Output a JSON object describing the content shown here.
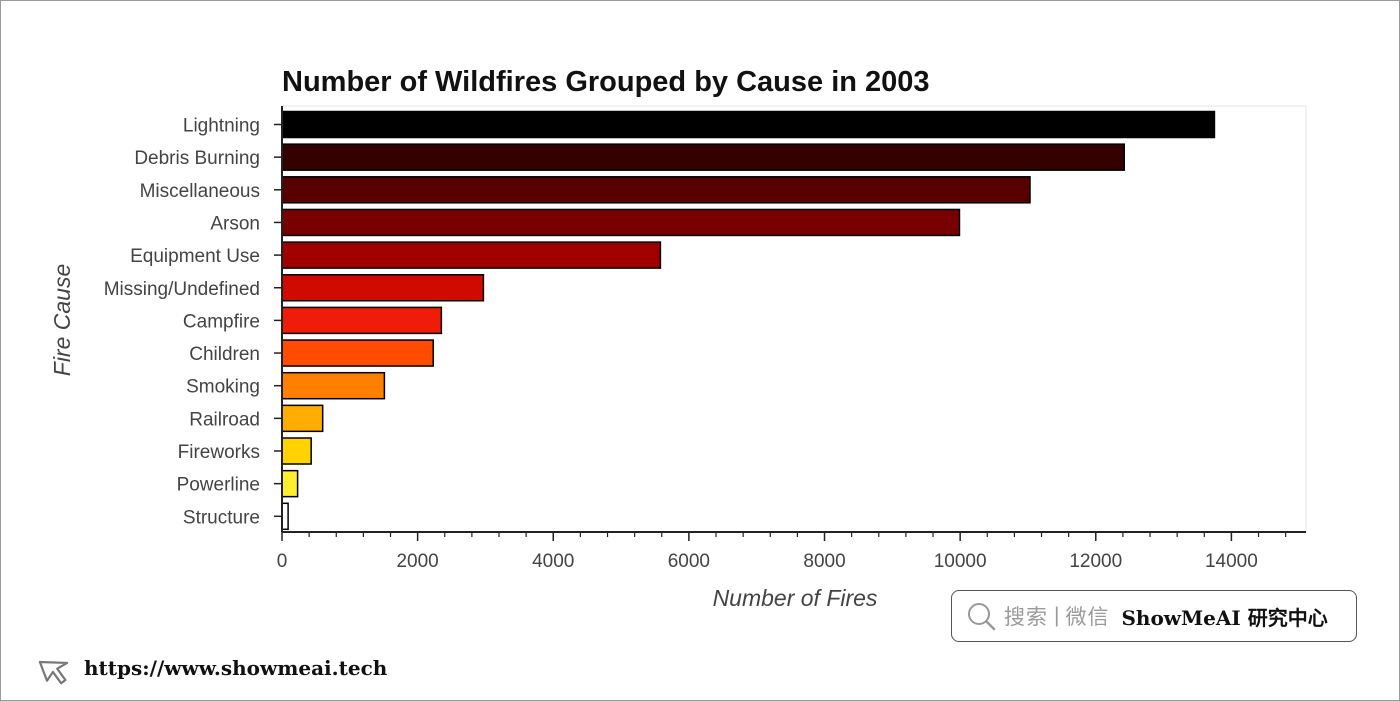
{
  "chart_data": {
    "type": "bar",
    "orientation": "horizontal",
    "title": "Number of Wildfires Grouped by Cause in 2003",
    "xlabel": "Number of Fires",
    "ylabel": "Fire Cause",
    "xlim": [
      0,
      15100
    ],
    "x_ticks": [
      0,
      2000,
      4000,
      6000,
      8000,
      10000,
      12000,
      14000
    ],
    "grid": false,
    "categories": [
      "Lightning",
      "Debris Burning",
      "Miscellaneous",
      "Arson",
      "Equipment Use",
      "Missing/Undefined",
      "Campfire",
      "Children",
      "Smoking",
      "Railroad",
      "Fireworks",
      "Powerline",
      "Structure"
    ],
    "values": [
      13750,
      12420,
      11030,
      9990,
      5580,
      2970,
      2350,
      2230,
      1510,
      600,
      430,
      230,
      90
    ],
    "colors": [
      "#000000",
      "#350000",
      "#580000",
      "#780000",
      "#a00000",
      "#cf0b00",
      "#f01c0a",
      "#ff4c00",
      "#ff8000",
      "#ffad00",
      "#ffd200",
      "#ffee2e",
      "#ffffff"
    ]
  },
  "watermark": {
    "search_text": "搜索",
    "divider": "|",
    "wechat_text": "微信",
    "brand": "ShowMeAI 研究中心",
    "url": "https://www.showmeai.tech",
    "search_icon": "magnifier-icon",
    "cursor_icon": "cursor-arrow-icon"
  }
}
